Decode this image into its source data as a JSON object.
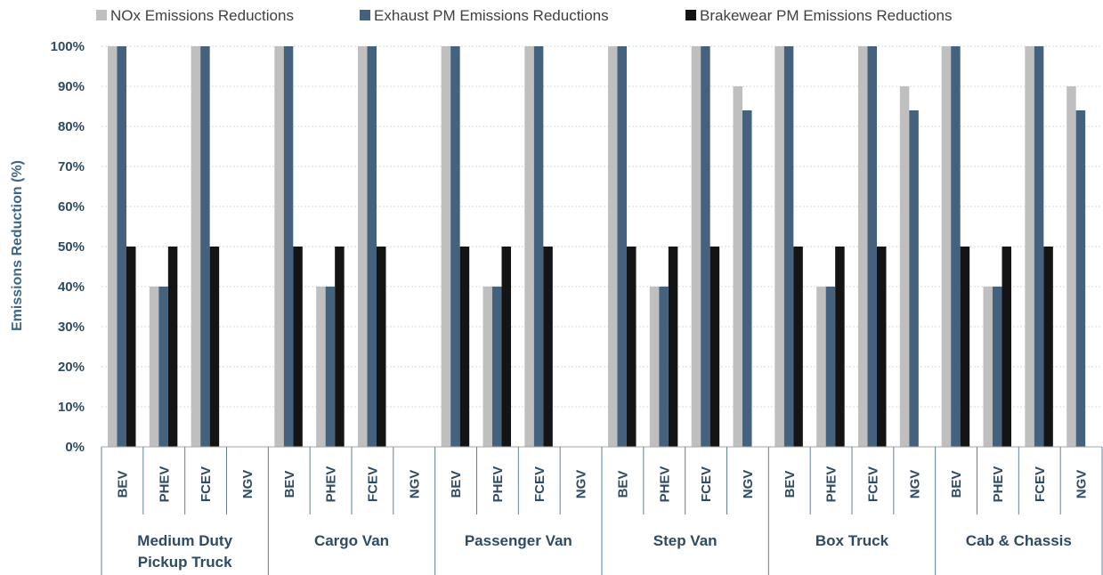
{
  "chart_data": {
    "type": "bar",
    "ylabel": "Emissions Reduction (%)",
    "xlabel": "",
    "ylim": [
      0,
      100
    ],
    "y_ticks": [
      "0%",
      "10%",
      "20%",
      "30%",
      "40%",
      "50%",
      "60%",
      "70%",
      "80%",
      "90%",
      "100%"
    ],
    "grid": true,
    "legend_position": "top",
    "groups": [
      {
        "label": "Medium Duty Pickup Truck",
        "lines": [
          "Medium Duty",
          "Pickup Truck"
        ]
      },
      {
        "label": "Cargo Van",
        "lines": [
          "Cargo Van"
        ]
      },
      {
        "label": "Passenger Van",
        "lines": [
          "Passenger Van"
        ]
      },
      {
        "label": "Step Van",
        "lines": [
          "Step Van"
        ]
      },
      {
        "label": "Box Truck",
        "lines": [
          "Box Truck"
        ]
      },
      {
        "label": "Cab & Chassis",
        "lines": [
          "Cab & Chassis"
        ]
      }
    ],
    "subcategories": [
      "BEV",
      "PHEV",
      "FCEV",
      "NGV"
    ],
    "series": [
      {
        "name": "NOx Emissions Reductions",
        "color": "#bfbfbf",
        "values": [
          100,
          40,
          100,
          0,
          100,
          40,
          100,
          0,
          100,
          40,
          100,
          0,
          100,
          40,
          100,
          90,
          100,
          40,
          100,
          90,
          100,
          40,
          100,
          90
        ]
      },
      {
        "name": "Exhaust PM Emissions Reductions",
        "color": "#44627e",
        "values": [
          100,
          40,
          100,
          0,
          100,
          40,
          100,
          0,
          100,
          40,
          100,
          0,
          100,
          40,
          100,
          84,
          100,
          40,
          100,
          84,
          100,
          40,
          100,
          84
        ]
      },
      {
        "name": "Brakewear PM Emissions Reductions",
        "color": "#141414",
        "values": [
          50,
          50,
          50,
          0,
          50,
          50,
          50,
          0,
          50,
          50,
          50,
          0,
          50,
          50,
          50,
          0,
          50,
          50,
          50,
          0,
          50,
          50,
          50,
          0
        ]
      }
    ]
  }
}
